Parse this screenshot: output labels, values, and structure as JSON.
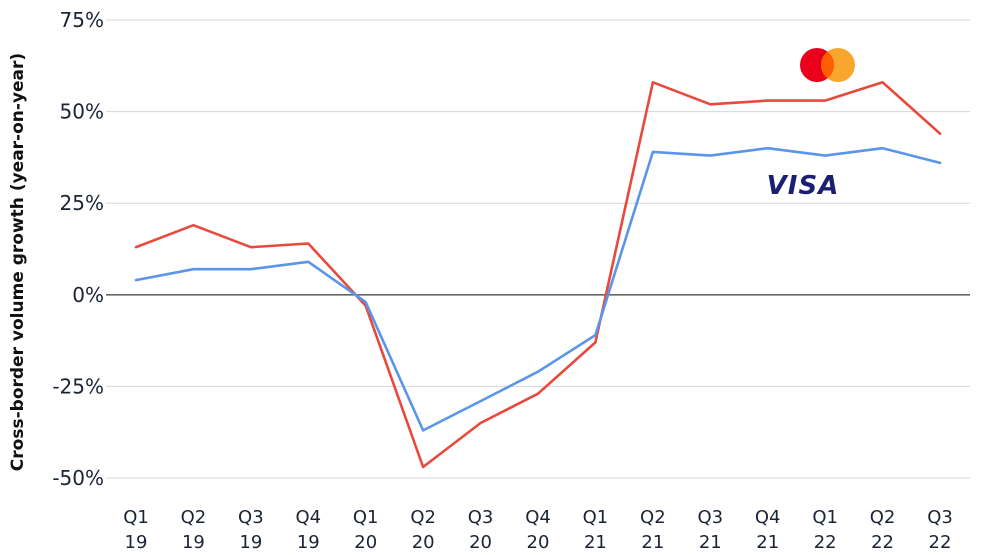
{
  "chart_data": {
    "type": "line",
    "ylabel": "Cross-border volume growth (year-on-year)",
    "ylim": [
      -50,
      75
    ],
    "yticks": [
      {
        "value": 75,
        "label": "75%"
      },
      {
        "value": 50,
        "label": "50%"
      },
      {
        "value": 25,
        "label": "25%"
      },
      {
        "value": 0,
        "label": "0%"
      },
      {
        "value": -25,
        "label": "-25%"
      },
      {
        "value": -50,
        "label": "-50%"
      }
    ],
    "grid": true,
    "categories": [
      {
        "q": "Q1",
        "y": "19"
      },
      {
        "q": "Q2",
        "y": "19"
      },
      {
        "q": "Q3",
        "y": "19"
      },
      {
        "q": "Q4",
        "y": "19"
      },
      {
        "q": "Q1",
        "y": "20"
      },
      {
        "q": "Q2",
        "y": "20"
      },
      {
        "q": "Q3",
        "y": "20"
      },
      {
        "q": "Q4",
        "y": "20"
      },
      {
        "q": "Q1",
        "y": "21"
      },
      {
        "q": "Q2",
        "y": "21"
      },
      {
        "q": "Q3",
        "y": "21"
      },
      {
        "q": "Q4",
        "y": "21"
      },
      {
        "q": "Q1",
        "y": "22"
      },
      {
        "q": "Q2",
        "y": "22"
      },
      {
        "q": "Q3",
        "y": "22"
      }
    ],
    "series": [
      {
        "logo": "mastercard-logo",
        "color": "#e8493d",
        "values": [
          13,
          19,
          13,
          14,
          -3,
          -47,
          -35,
          -27,
          -13,
          58,
          52,
          53,
          53,
          58,
          44
        ]
      },
      {
        "logo": "visa-logo",
        "logo_text": "VISA",
        "color": "#5b95eb",
        "values": [
          4,
          7,
          7,
          9,
          -2,
          -37,
          -29,
          -21,
          -11,
          39,
          38,
          40,
          38,
          40,
          36
        ]
      }
    ],
    "legend_placement": "logos at top-right near series lines"
  },
  "colors": {
    "mastercard_red": "#eb001b",
    "mastercard_orange": "#f79e1b",
    "visa_blue": "#1a1f71",
    "grid": "#d7d7d7",
    "zero_line": "#666666"
  }
}
